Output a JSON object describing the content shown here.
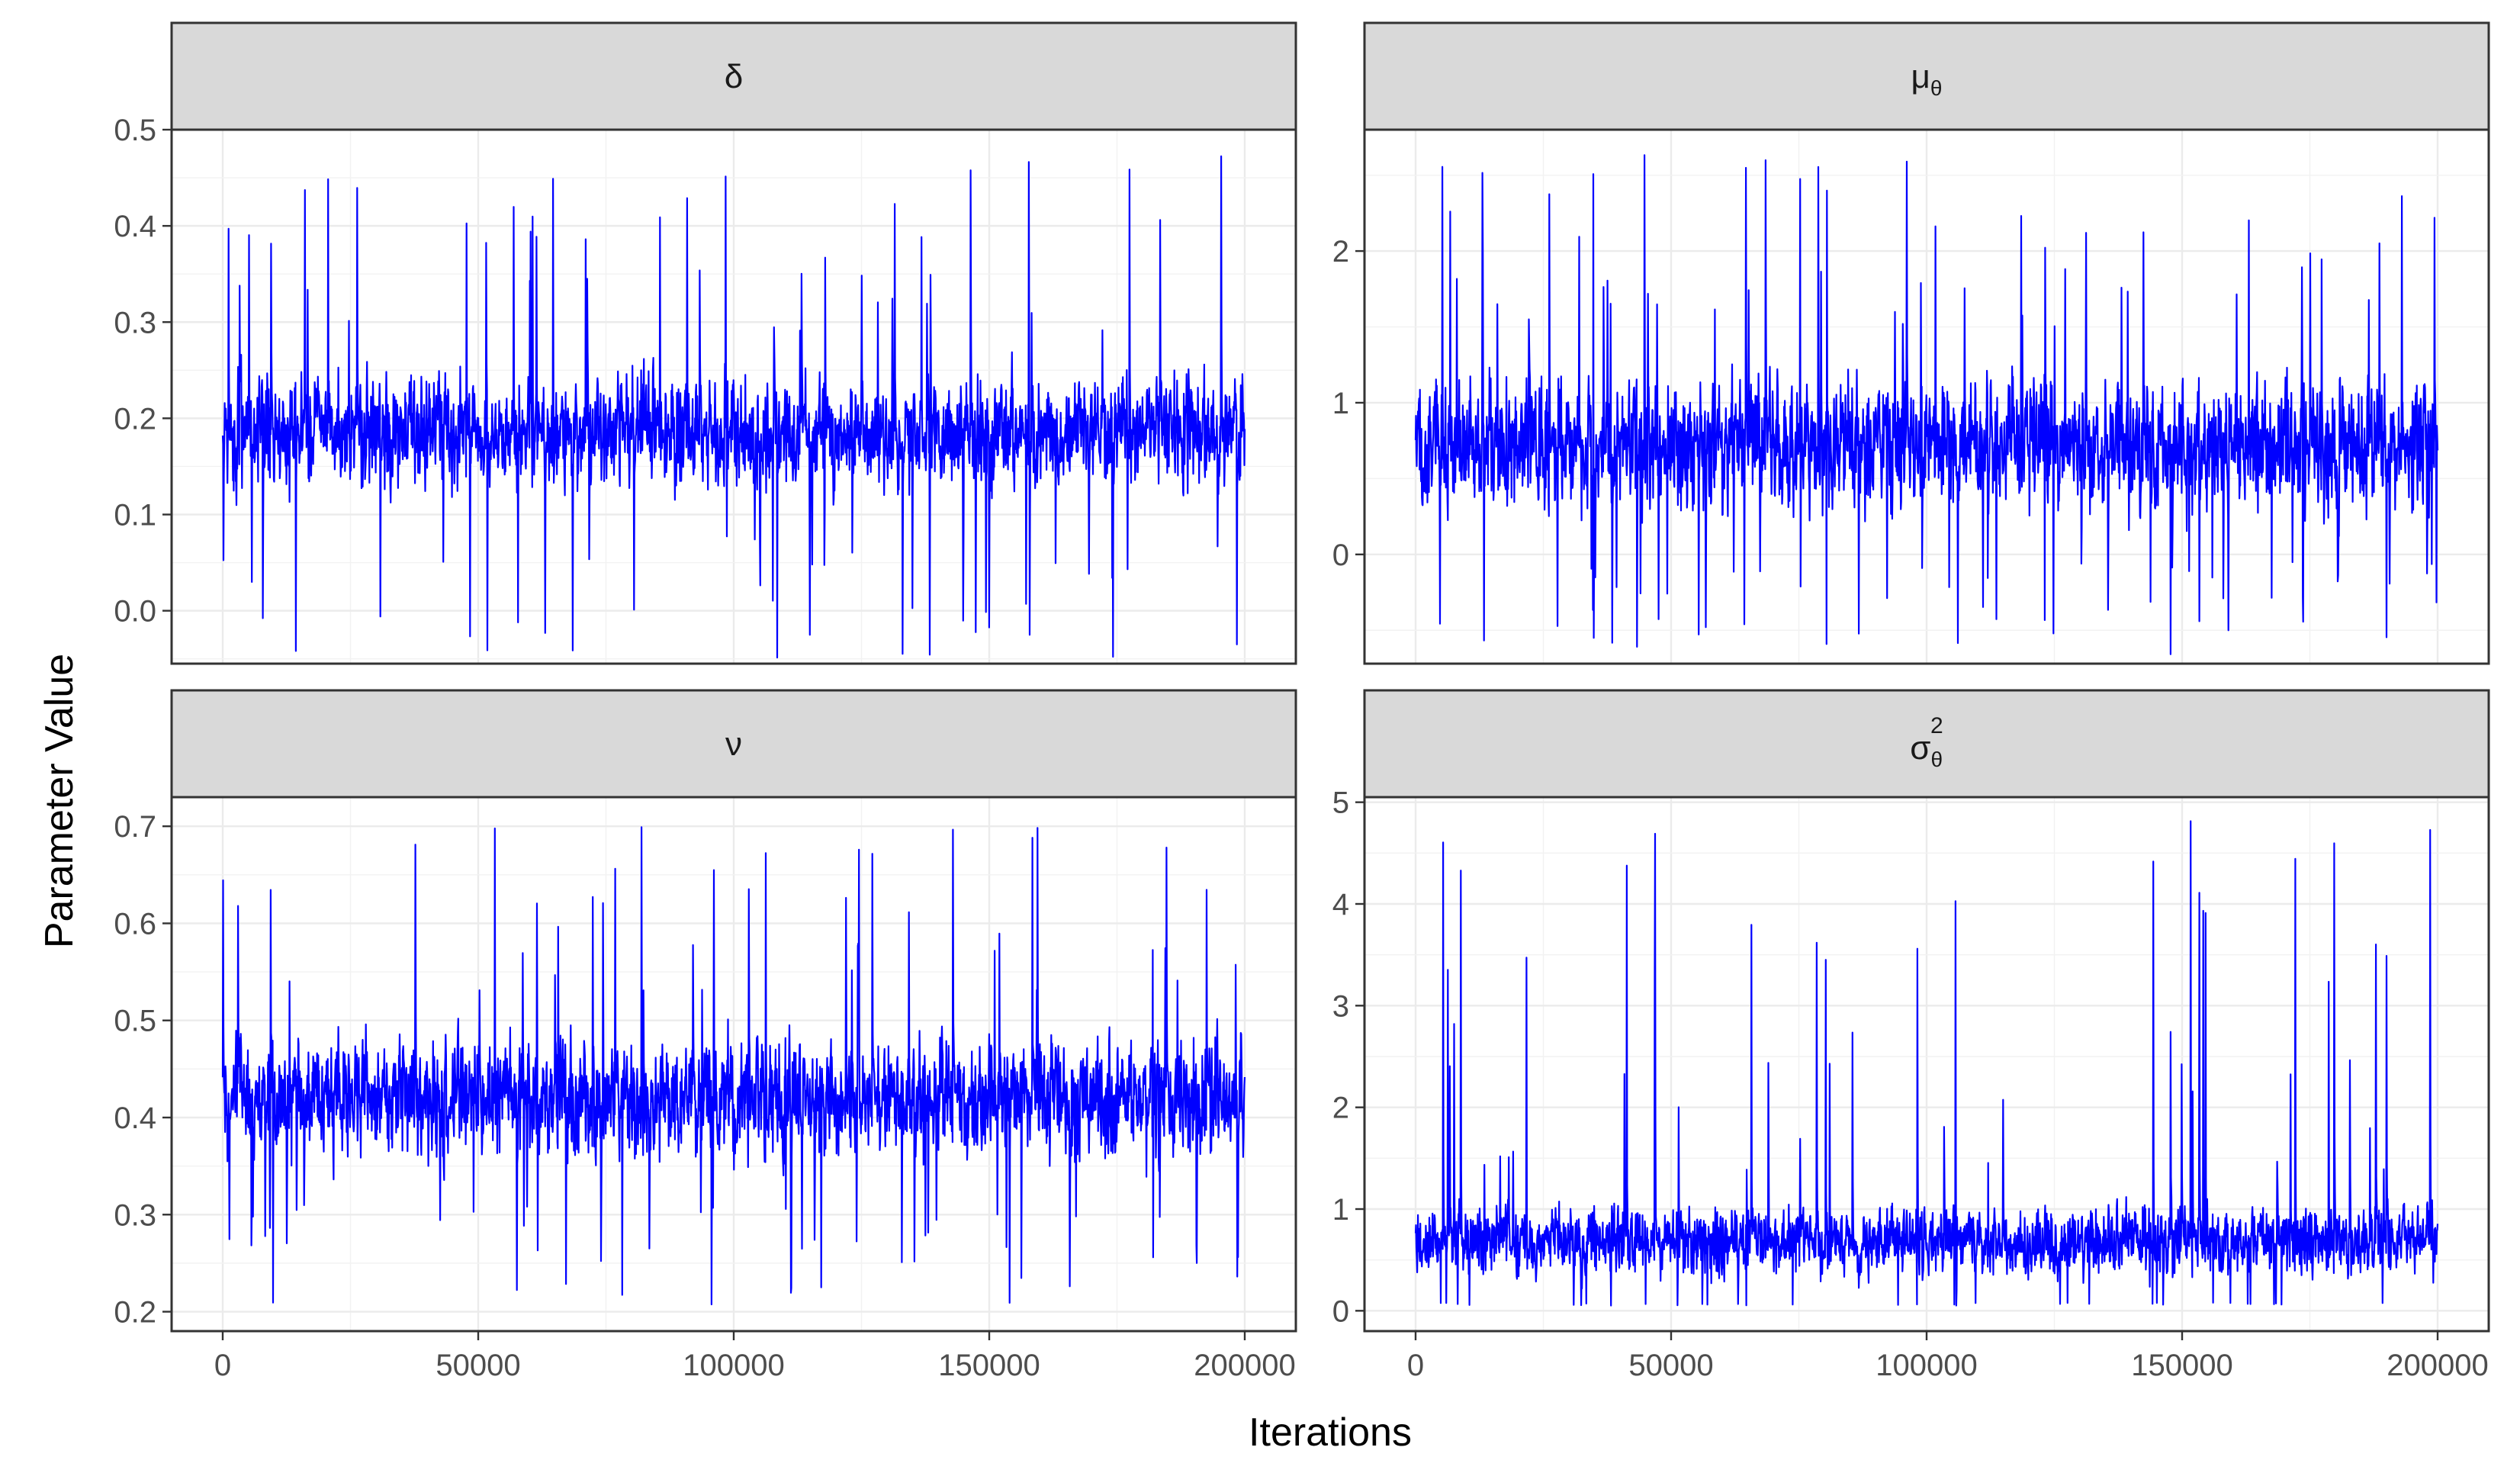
{
  "chart_data": {
    "type": "line",
    "xlabel": "Iterations",
    "ylabel": "Parameter Value",
    "x_range": [
      0,
      200000
    ],
    "x_ticks": [
      0,
      50000,
      100000,
      150000,
      200000
    ],
    "x_tick_labels": [
      "0",
      "50000",
      "100000",
      "150000",
      "200000"
    ],
    "grid": true,
    "legend": "none",
    "line_color": "#0000FF",
    "panels": [
      {
        "strip_label": "δ",
        "ylim": [
          -0.055,
          0.5
        ],
        "y_ticks": [
          0.0,
          0.1,
          0.2,
          0.3,
          0.4,
          0.5
        ],
        "y_tick_labels": [
          "0.0",
          "0.1",
          "0.2",
          "0.3",
          "0.4",
          "0.5"
        ],
        "series_summary": {
          "center": 0.18,
          "bulk_low": 0.08,
          "bulk_high": 0.29,
          "min": -0.05,
          "max": 0.475
        }
      },
      {
        "strip_label": "μθ",
        "strip_main": "μ",
        "strip_sub": "θ",
        "ylim": [
          -0.72,
          2.8
        ],
        "y_ticks": [
          0,
          1,
          2
        ],
        "y_tick_labels": [
          "0",
          "1",
          "2"
        ],
        "series_summary": {
          "center": 0.62,
          "bulk_low": -0.05,
          "bulk_high": 1.5,
          "min": -0.68,
          "max": 2.68
        }
      },
      {
        "strip_label": "ν",
        "ylim": [
          0.18,
          0.73
        ],
        "y_ticks": [
          0.2,
          0.3,
          0.4,
          0.5,
          0.6,
          0.7
        ],
        "y_tick_labels": [
          "0.2",
          "0.3",
          "0.4",
          "0.5",
          "0.6",
          "0.7"
        ],
        "series_summary": {
          "center": 0.42,
          "bulk_low": 0.31,
          "bulk_high": 0.53,
          "min": 0.205,
          "max": 0.71
        }
      },
      {
        "strip_label": "σθ2",
        "strip_main": "σ",
        "strip_sub": "θ",
        "strip_sup": "2",
        "ylim": [
          -0.2,
          5.05
        ],
        "y_ticks": [
          0,
          1,
          2,
          3,
          4,
          5
        ],
        "y_tick_labels": [
          "0",
          "1",
          "2",
          "3",
          "4",
          "5"
        ],
        "series_summary": {
          "center": 0.55,
          "bulk_low": 0.08,
          "bulk_high": 1.3,
          "min": 0.05,
          "max": 4.82
        }
      }
    ]
  }
}
